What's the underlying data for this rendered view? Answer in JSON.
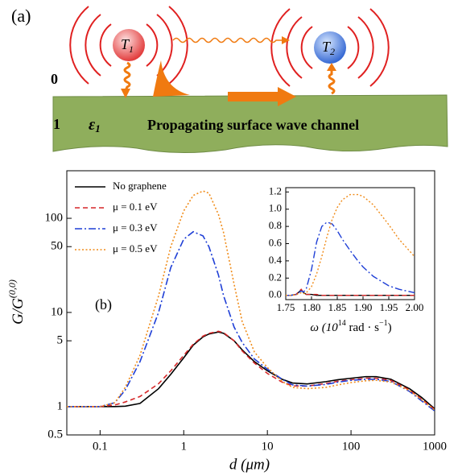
{
  "diagram": {
    "panel_label": "(a)",
    "region_top": "0",
    "region_bottom": "1",
    "permittivity": {
      "symbol": "ε",
      "subscript": "1"
    },
    "channel_label": "Propagating surface wave channel",
    "emitters": [
      {
        "symbol": "T",
        "subscript": "1"
      },
      {
        "symbol": "T",
        "subscript": "2"
      }
    ]
  },
  "chart_data": [
    {
      "type": "line",
      "annotations": [
        "(b)"
      ],
      "x_label": "d (μm)",
      "y_label": "G/G",
      "y_label_sup": "(0,0)",
      "xscale": "log",
      "yscale": "log",
      "legend": "upper left",
      "xlim": [
        0.04,
        1000
      ],
      "ylim": [
        0.5,
        320
      ],
      "xticks": [
        0.1,
        1,
        10,
        100,
        1000
      ],
      "yticks": [
        0.5,
        1,
        5,
        10,
        50,
        100
      ],
      "x": [
        0.04,
        0.06,
        0.1,
        0.15,
        0.2,
        0.3,
        0.5,
        0.7,
        1,
        1.3,
        1.7,
        2,
        2.6,
        3,
        4,
        5,
        7,
        10,
        15,
        20,
        30,
        50,
        70,
        100,
        150,
        200,
        300,
        500,
        700,
        1000
      ],
      "series": [
        {
          "name": "No graphene",
          "color": "#000000",
          "style": "solid",
          "values": [
            1,
            1,
            1,
            1,
            1.01,
            1.08,
            1.55,
            2.2,
            3.3,
            4.5,
            5.5,
            5.9,
            6.2,
            6.0,
            5.0,
            4.0,
            3.0,
            2.4,
            1.95,
            1.78,
            1.74,
            1.84,
            1.93,
            2.0,
            2.08,
            2.08,
            1.95,
            1.55,
            1.25,
            0.95
          ]
        },
        {
          "name": "μ = 0.1 eV",
          "color": "#d62728",
          "style": "dashed",
          "values": [
            1,
            1,
            1,
            1.04,
            1.12,
            1.28,
            1.75,
            2.4,
            3.5,
            4.6,
            5.6,
            6.0,
            6.3,
            6.1,
            5.0,
            3.9,
            2.9,
            2.25,
            1.82,
            1.66,
            1.65,
            1.76,
            1.86,
            1.93,
            2.0,
            2.0,
            1.9,
            1.5,
            1.2,
            0.93
          ]
        },
        {
          "name": "μ = 0.3 eV",
          "color": "#1f3fd6",
          "style": "dashdot",
          "values": [
            1,
            1,
            1,
            1.1,
            1.5,
            3.0,
            10,
            30,
            60,
            72,
            65,
            50,
            25,
            15,
            7,
            4.8,
            3.2,
            2.5,
            1.95,
            1.7,
            1.65,
            1.72,
            1.82,
            1.9,
            1.95,
            1.95,
            1.85,
            1.45,
            1.15,
            0.9
          ]
        },
        {
          "name": "μ = 0.5 eV",
          "color": "#f08c1a",
          "style": "dotted",
          "values": [
            1,
            1,
            1,
            1.1,
            1.6,
            3.5,
            15,
            50,
            120,
            175,
            195,
            185,
            110,
            70,
            20,
            8,
            3.8,
            2.6,
            1.85,
            1.6,
            1.55,
            1.6,
            1.7,
            1.8,
            1.88,
            1.9,
            1.82,
            1.48,
            1.18,
            0.92
          ]
        }
      ]
    },
    {
      "type": "line",
      "x_label_parts": [
        "ω (10",
        "14",
        " rad · s",
        "−1",
        ")"
      ],
      "xscale": "linear",
      "yscale": "linear",
      "xlim": [
        1.75,
        2.0
      ],
      "ylim": [
        -0.05,
        1.25
      ],
      "xticks": [
        1.75,
        {
          "value": 1.8,
          "label": "1.80"
        },
        1.85,
        {
          "value": 1.9,
          "label": "1.90"
        },
        1.95,
        {
          "value": 2.0,
          "label": "2.00"
        }
      ],
      "yticks": [
        {
          "value": 0,
          "label": "0.0"
        },
        0.2,
        0.4,
        0.6,
        0.8,
        {
          "value": 1.0,
          "label": "1.0"
        },
        1.2
      ],
      "x": [
        1.75,
        1.76,
        1.77,
        1.78,
        1.785,
        1.79,
        1.8,
        1.81,
        1.82,
        1.83,
        1.84,
        1.85,
        1.86,
        1.875,
        1.89,
        1.9,
        1.92,
        1.95,
        1.97,
        2.0
      ],
      "series": [
        {
          "color": "#000000",
          "style": "solid",
          "values": [
            0,
            0,
            0.01,
            0.06,
            0.03,
            0.01,
            0.01,
            0,
            0,
            0,
            0,
            0,
            0,
            0,
            0,
            0,
            0,
            0,
            0,
            0
          ]
        },
        {
          "color": "#d62728",
          "style": "dashed",
          "values": [
            0,
            0,
            0.01,
            0.07,
            0.03,
            0.01,
            0.01,
            0.01,
            0,
            0,
            0,
            0,
            0,
            0,
            0,
            0,
            0,
            0,
            0,
            0
          ]
        },
        {
          "color": "#1f3fd6",
          "style": "dashdot",
          "values": [
            0,
            0,
            0.01,
            0.05,
            0.04,
            0.08,
            0.3,
            0.62,
            0.8,
            0.85,
            0.83,
            0.75,
            0.65,
            0.52,
            0.4,
            0.33,
            0.22,
            0.11,
            0.07,
            0.03
          ]
        },
        {
          "color": "#f08c1a",
          "style": "dotted",
          "values": [
            0,
            0,
            0.005,
            0.03,
            0.02,
            0.03,
            0.1,
            0.25,
            0.45,
            0.68,
            0.88,
            1.02,
            1.11,
            1.17,
            1.17,
            1.15,
            1.05,
            0.82,
            0.65,
            0.45
          ]
        }
      ]
    }
  ]
}
